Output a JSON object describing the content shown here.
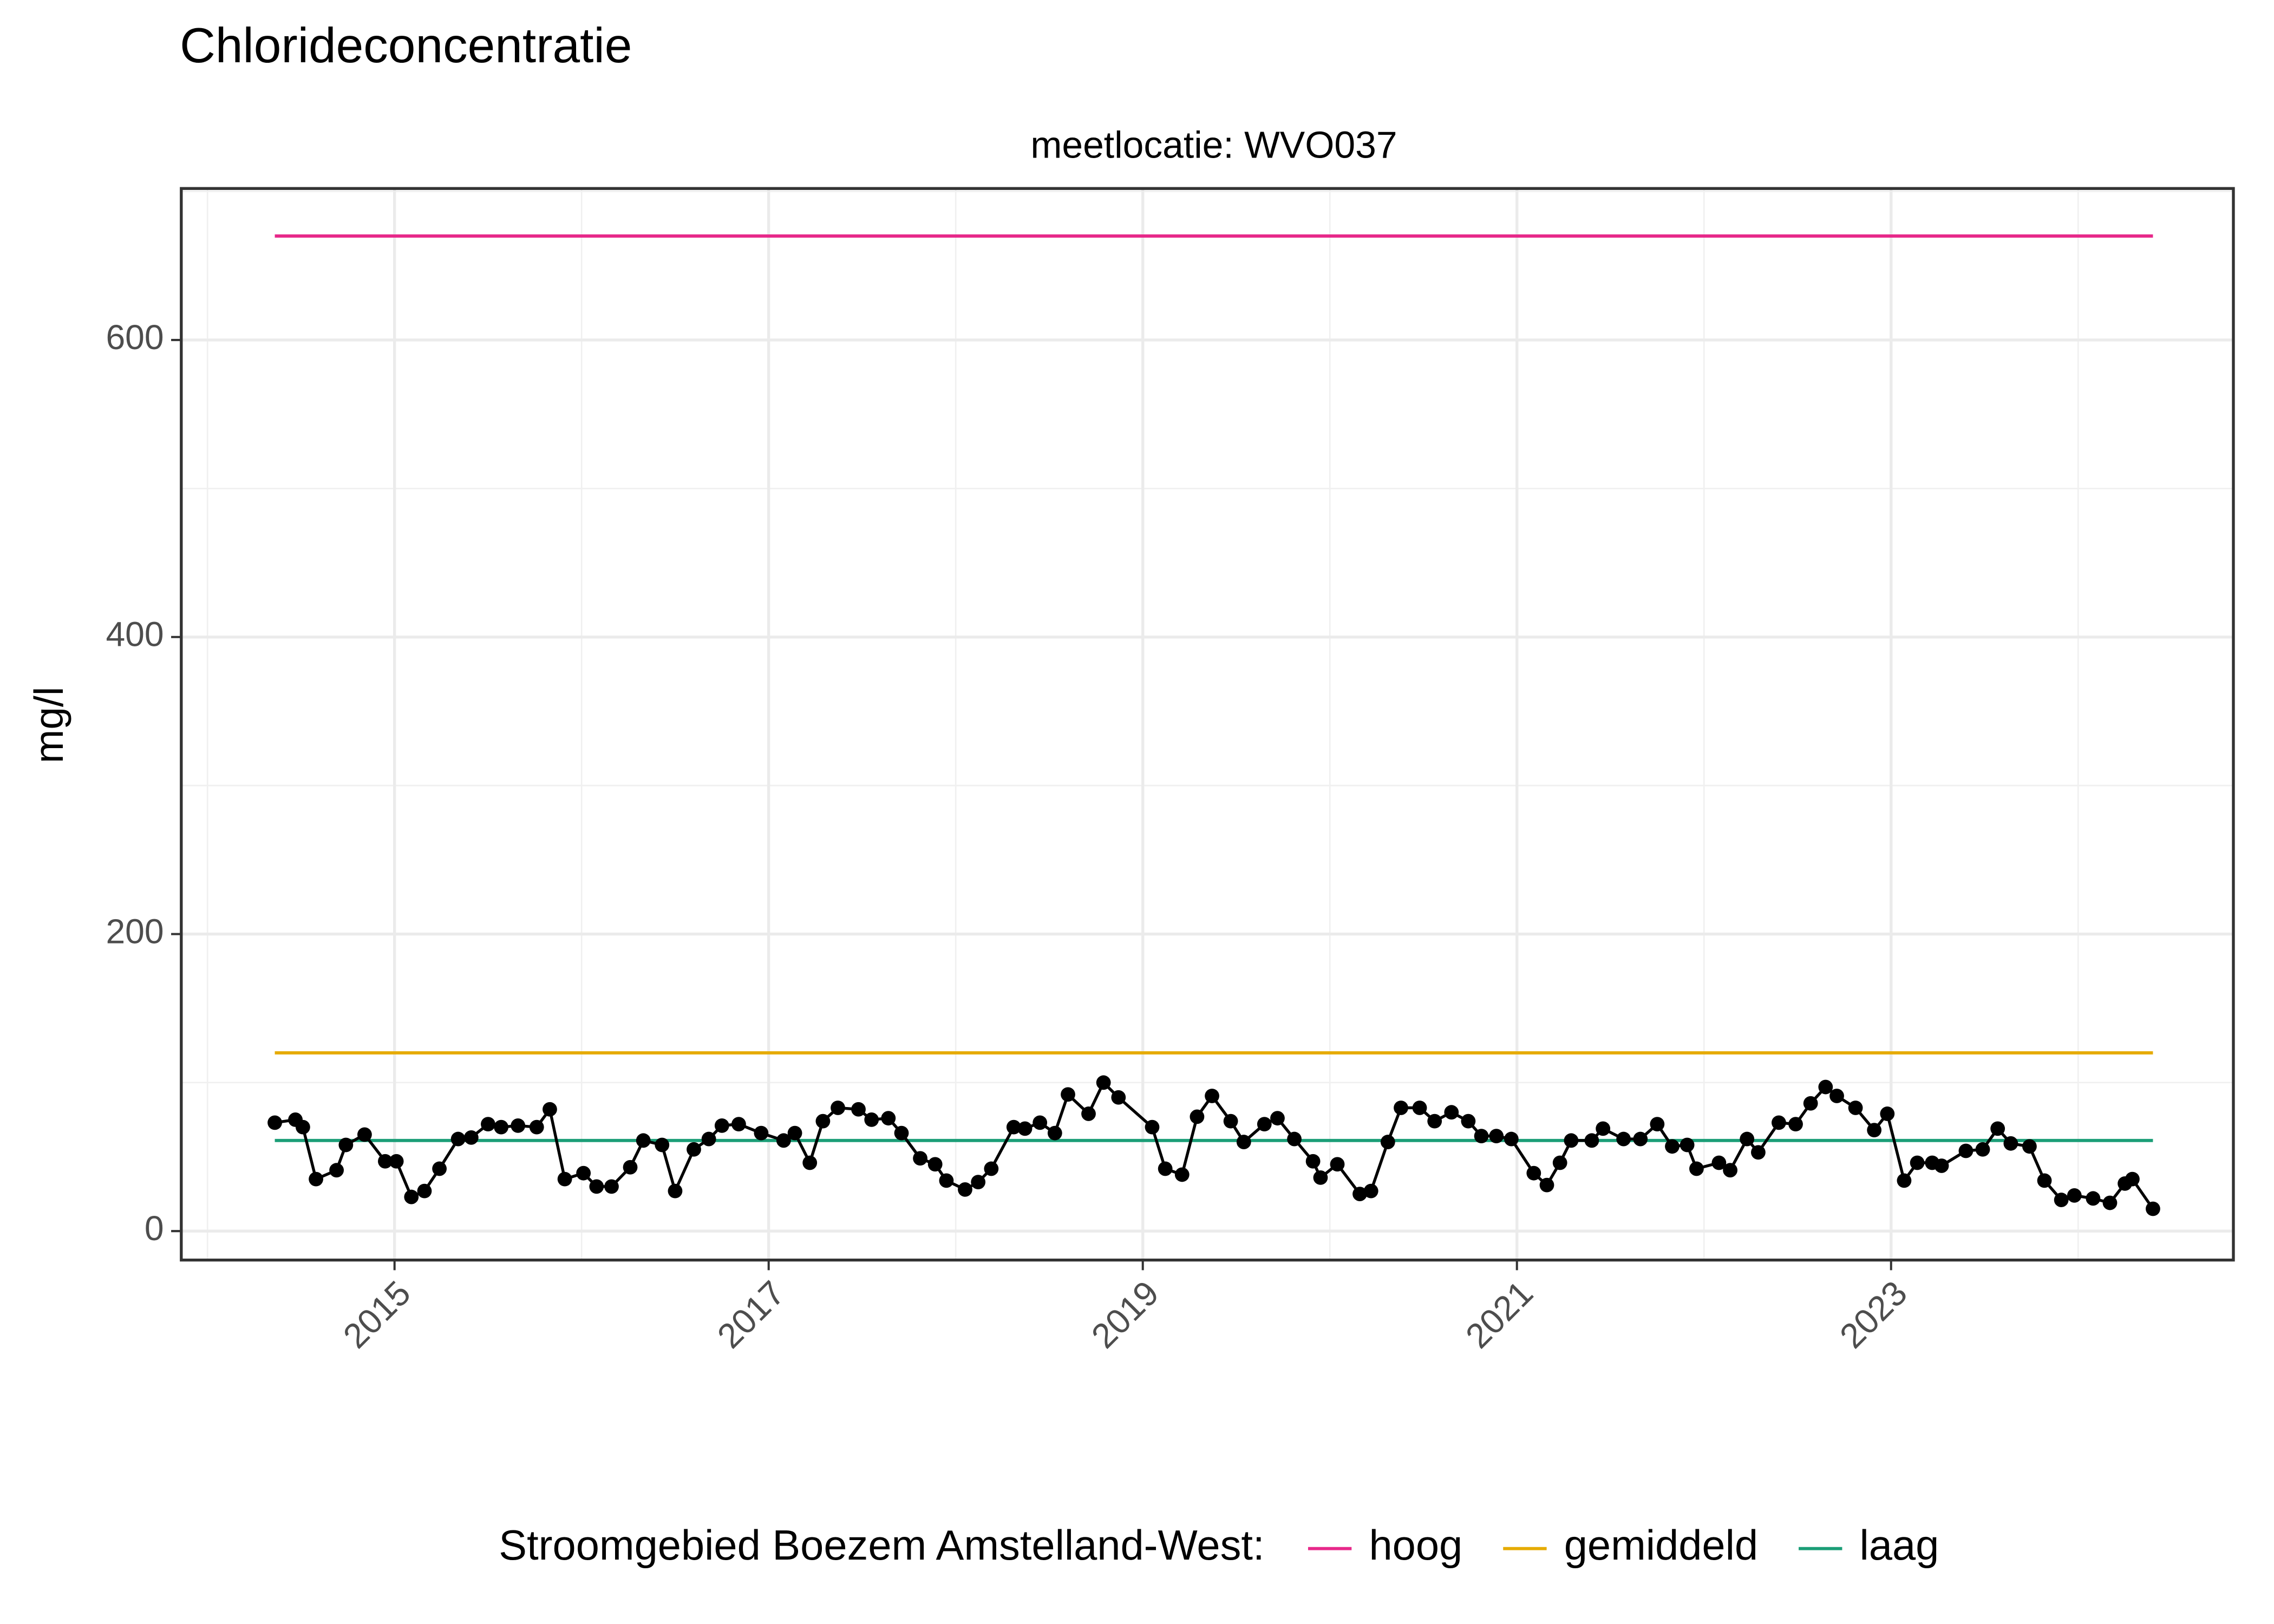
{
  "chart_data": {
    "type": "line",
    "title": "Chlorideconcentratie",
    "subtitle": "meetlocatie: WVO037",
    "y_label": "mg/l",
    "legend_title": "Stroomgebied Boezem Amstelland-West:",
    "legend_position": "bottom",
    "grid": true,
    "xlim": [
      2013.86,
      2024.83
    ],
    "xticks": [
      2015,
      2017,
      2019,
      2021,
      2023
    ],
    "ylim": [
      -19.5,
      702
    ],
    "yticks": [
      0,
      200,
      400,
      600
    ],
    "x": [
      2014.36,
      2014.47,
      2014.51,
      2014.58,
      2014.69,
      2014.74,
      2014.84,
      2014.95,
      2015.01,
      2015.09,
      2015.16,
      2015.24,
      2015.34,
      2015.41,
      2015.5,
      2015.57,
      2015.66,
      2015.76,
      2015.83,
      2015.91,
      2016.01,
      2016.08,
      2016.16,
      2016.26,
      2016.33,
      2016.43,
      2016.5,
      2016.6,
      2016.68,
      2016.75,
      2016.84,
      2016.96,
      2017.08,
      2017.14,
      2017.22,
      2017.29,
      2017.37,
      2017.48,
      2017.55,
      2017.64,
      2017.71,
      2017.81,
      2017.89,
      2017.95,
      2018.05,
      2018.12,
      2018.19,
      2018.31,
      2018.37,
      2018.45,
      2018.53,
      2018.6,
      2018.71,
      2018.79,
      2018.87,
      2019.05,
      2019.12,
      2019.21,
      2019.29,
      2019.37,
      2019.47,
      2019.54,
      2019.65,
      2019.72,
      2019.81,
      2019.91,
      2019.95,
      2020.04,
      2020.16,
      2020.22,
      2020.31,
      2020.38,
      2020.48,
      2020.56,
      2020.65,
      2020.74,
      2020.81,
      2020.89,
      2020.97,
      2021.09,
      2021.16,
      2021.23,
      2021.29,
      2021.4,
      2021.46,
      2021.57,
      2021.66,
      2021.75,
      2021.83,
      2021.91,
      2021.96,
      2022.08,
      2022.14,
      2022.23,
      2022.29,
      2022.4,
      2022.49,
      2022.57,
      2022.65,
      2022.71,
      2022.81,
      2022.91,
      2022.98,
      2023.07,
      2023.14,
      2023.22,
      2023.27,
      2023.4,
      2023.49,
      2023.57,
      2023.64,
      2023.74,
      2023.82,
      2023.91,
      2023.98,
      2024.08,
      2024.17,
      2024.25,
      2024.29,
      2024.4
    ],
    "series": [
      {
        "color": "#000000",
        "values": [
          73,
          75,
          70,
          35,
          41,
          58,
          65,
          47,
          47,
          23,
          27,
          42,
          62,
          63,
          72,
          70,
          71,
          70,
          82,
          35,
          39,
          30,
          30,
          43,
          61,
          58,
          27,
          55,
          62,
          71,
          72,
          66,
          61,
          66,
          46,
          74,
          83,
          82,
          75,
          76,
          66,
          49,
          45,
          34,
          28,
          33,
          42,
          70,
          69,
          73,
          66,
          92,
          79,
          100,
          90,
          70,
          42,
          38,
          77,
          91,
          74,
          60,
          72,
          76,
          62,
          47,
          36,
          45,
          25,
          27,
          60,
          83,
          83,
          74,
          80,
          74,
          64,
          64,
          62,
          39,
          31,
          46,
          61,
          61,
          69,
          62,
          62,
          72,
          57,
          58,
          42,
          46,
          41,
          62,
          53,
          73,
          72,
          86,
          97,
          91,
          83,
          68,
          79,
          34,
          46,
          46,
          44,
          54,
          55,
          69,
          59,
          57,
          34,
          21,
          24,
          22,
          19,
          32,
          35,
          15
        ]
      }
    ],
    "reference_lines": [
      {
        "name": "hoog",
        "color": "#e7298a",
        "value": 670
      },
      {
        "name": "gemiddeld",
        "color": "#e6ab02",
        "value": 120
      },
      {
        "name": "laag",
        "color": "#1b9e77",
        "value": 61
      }
    ]
  }
}
